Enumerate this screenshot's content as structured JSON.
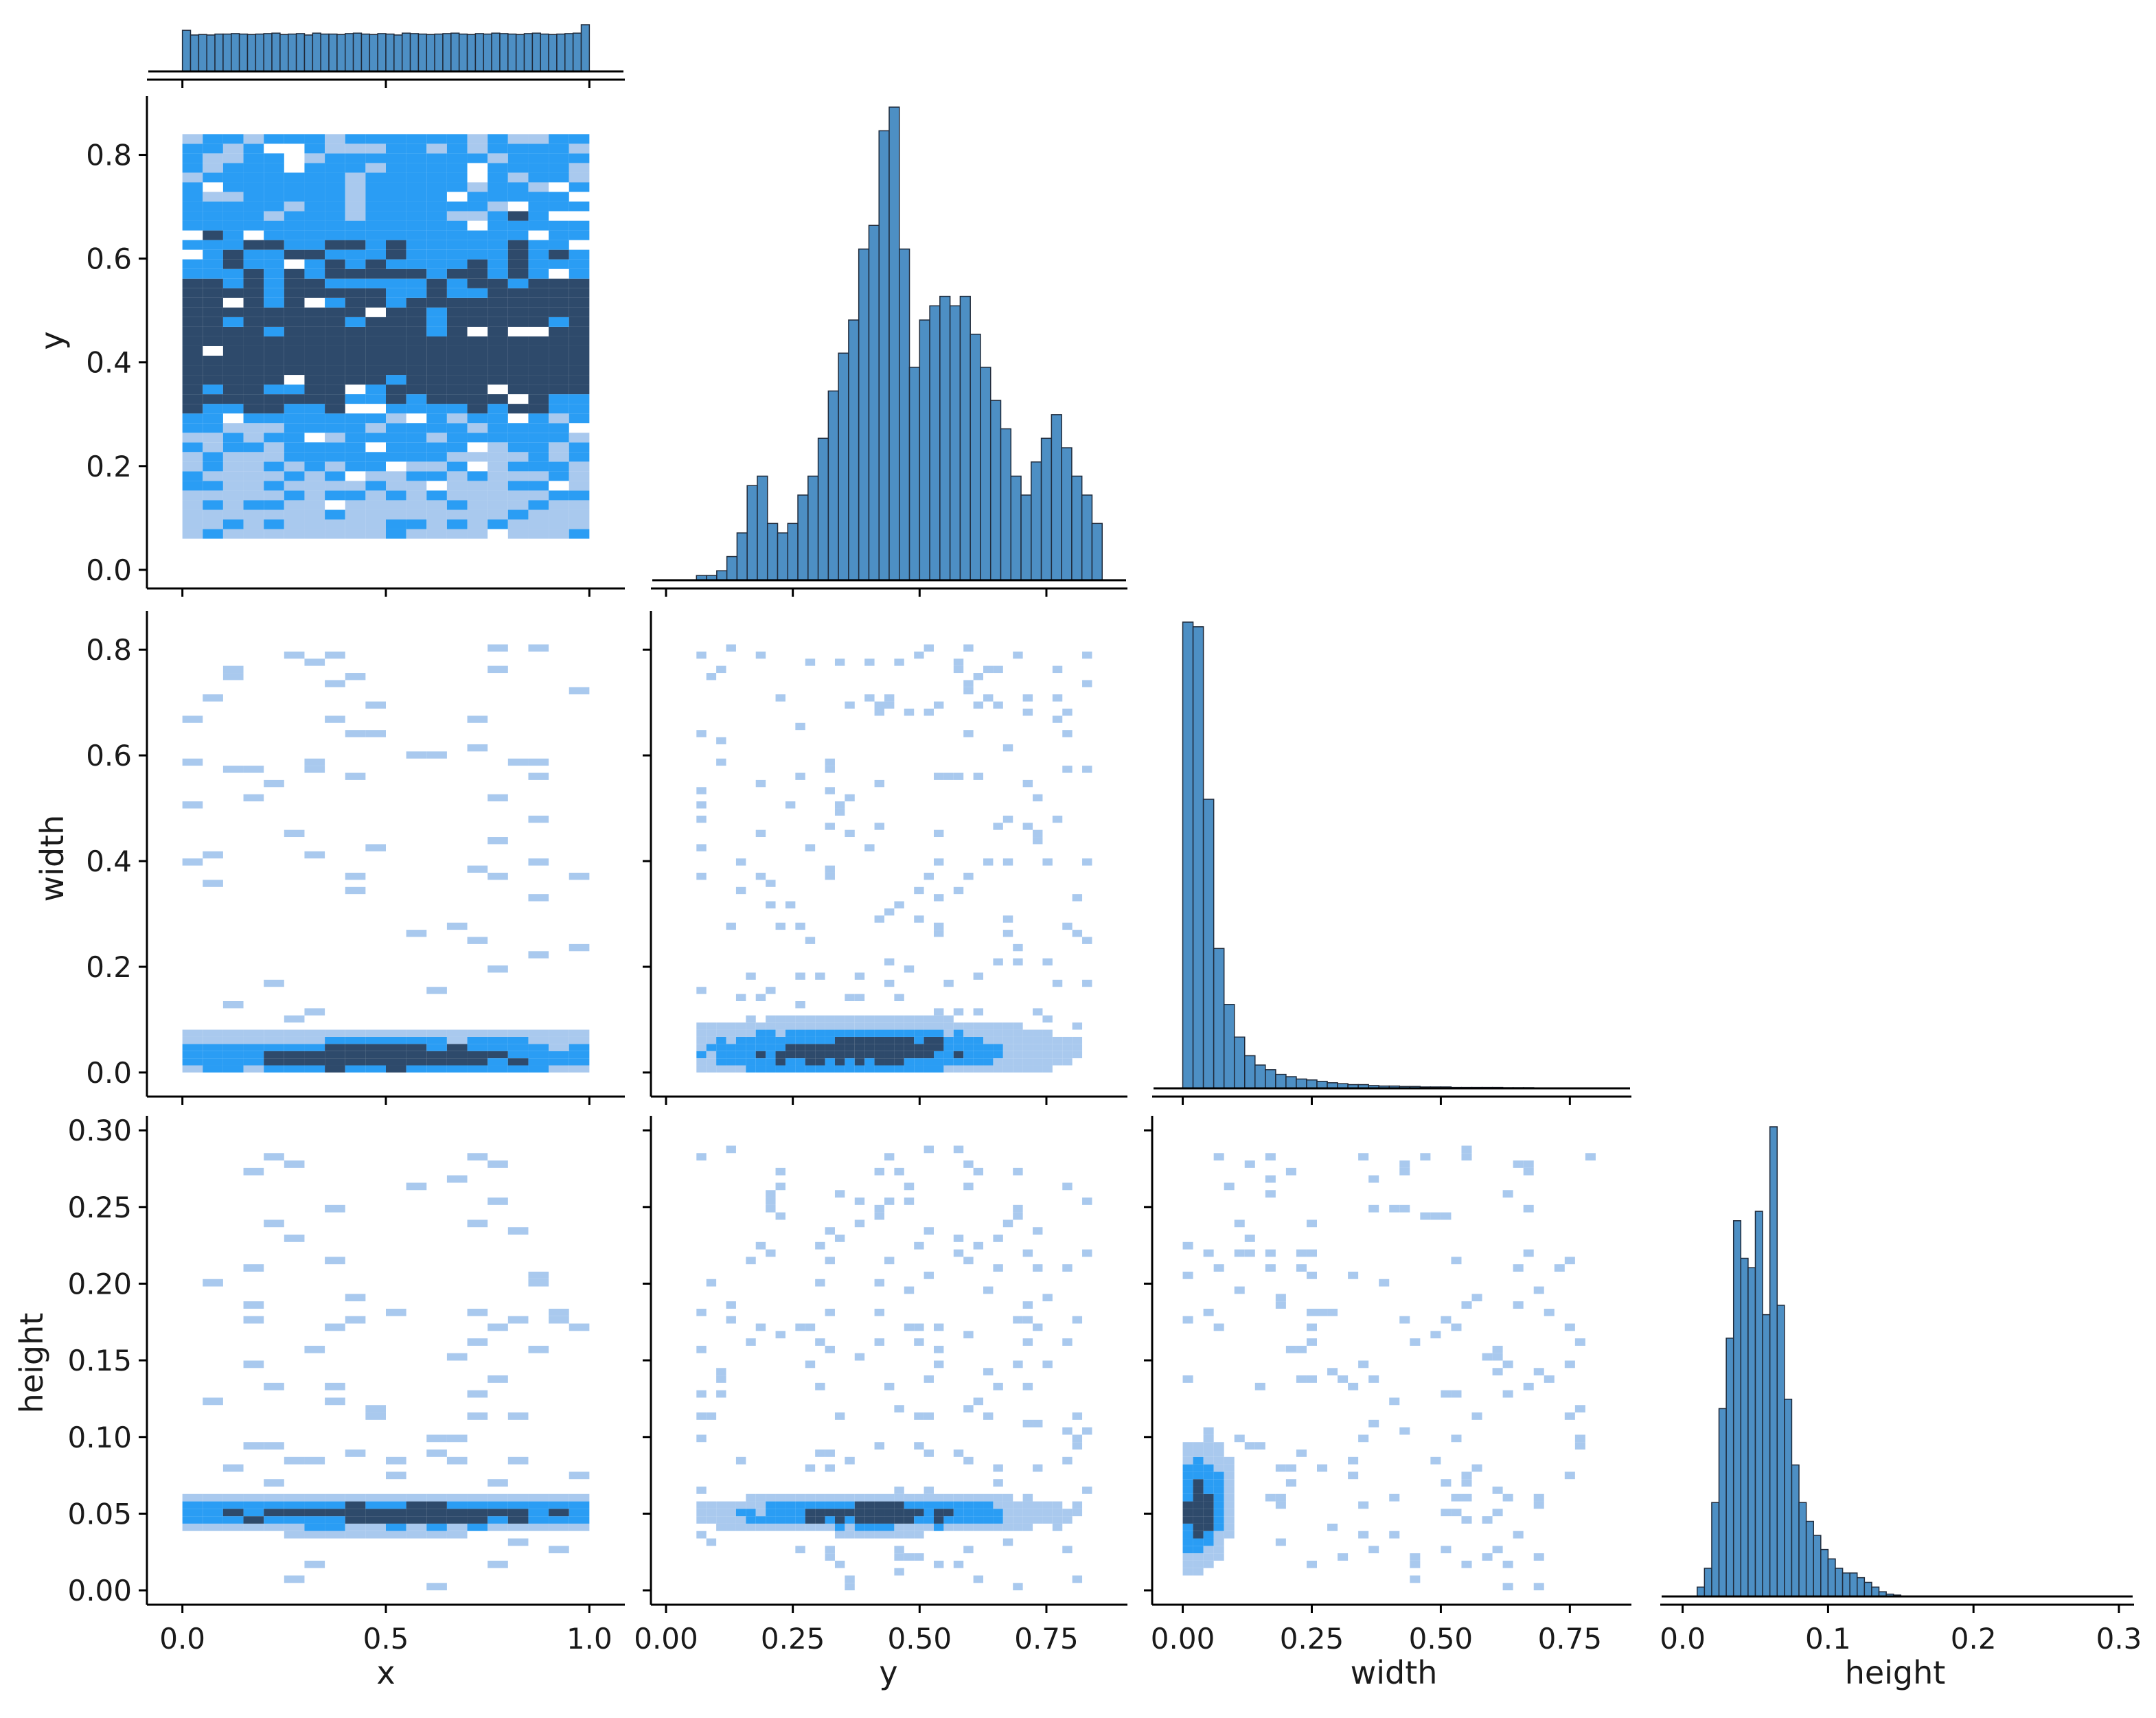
{
  "chart_data": {
    "type": "pairplot",
    "variables": [
      "x",
      "y",
      "width",
      "height"
    ],
    "corner": true,
    "grid": false,
    "colors": {
      "hist_fill": "#4d8fc4",
      "hist_edge": "#1f2a3a",
      "bivar_light": "#a9c9ee",
      "bivar_mid": "#2a9df4",
      "bivar_dark": "#2e4a6b"
    },
    "axes": {
      "x": {
        "label": "x",
        "range": [
          -0.05,
          1.05
        ],
        "ticks": [
          0.0,
          0.5,
          1.0
        ],
        "tick_labels": [
          "0.0",
          "0.5",
          "1.0"
        ]
      },
      "y": {
        "label": "y",
        "range": [
          -0.02,
          0.9
        ],
        "ticks": [
          0.0,
          0.2,
          0.4,
          0.6,
          0.8
        ],
        "tick_labels": [
          "0.0",
          "0.2",
          "0.4",
          "0.6",
          "0.8"
        ],
        "x_ticks": [
          0.0,
          0.25,
          0.5,
          0.75
        ],
        "x_tick_labels": [
          "0.00",
          "0.25",
          "0.50",
          "0.75"
        ],
        "x_range": [
          0.0,
          0.88
        ]
      },
      "width": {
        "label": "width",
        "range": [
          -0.03,
          0.86
        ],
        "ticks": [
          0.0,
          0.2,
          0.4,
          0.6,
          0.8
        ],
        "tick_labels": [
          "0.0",
          "0.2",
          "0.4",
          "0.6",
          "0.8"
        ],
        "x_ticks": [
          0.0,
          0.25,
          0.5,
          0.75
        ],
        "x_tick_labels": [
          "0.00",
          "0.25",
          "0.50",
          "0.75"
        ],
        "x_range": [
          -0.03,
          0.84
        ]
      },
      "height": {
        "label": "height",
        "range": [
          -0.004,
          0.305
        ],
        "ticks": [
          0.0,
          0.05,
          0.1,
          0.15,
          0.2,
          0.25,
          0.3
        ],
        "tick_labels": [
          "0.00",
          "0.05",
          "0.10",
          "0.15",
          "0.20",
          "0.25",
          "0.30"
        ],
        "x_ticks": [
          0.0,
          0.1,
          0.2,
          0.3
        ],
        "x_tick_labels": [
          "0.0",
          "0.1",
          "0.2",
          "0.3"
        ],
        "x_range": [
          -0.005,
          0.3
        ]
      }
    },
    "hist_x": {
      "bin_width": 0.02,
      "range": [
        0.0,
        1.0
      ],
      "counts": [
        0.88,
        0.78,
        0.79,
        0.78,
        0.8,
        0.8,
        0.81,
        0.8,
        0.79,
        0.8,
        0.81,
        0.82,
        0.79,
        0.8,
        0.81,
        0.78,
        0.82,
        0.8,
        0.8,
        0.79,
        0.81,
        0.82,
        0.8,
        0.79,
        0.81,
        0.8,
        0.78,
        0.82,
        0.81,
        0.8,
        0.79,
        0.8,
        0.81,
        0.82,
        0.8,
        0.79,
        0.81,
        0.8,
        0.82,
        0.81,
        0.8,
        0.79,
        0.81,
        0.82,
        0.8,
        0.79,
        0.8,
        0.81,
        0.82,
        1.0
      ]
    },
    "hist_y": {
      "bin_width": 0.02,
      "range": [
        0.06,
        0.84
      ],
      "counts": [
        0.01,
        0.01,
        0.02,
        0.05,
        0.1,
        0.2,
        0.22,
        0.12,
        0.1,
        0.12,
        0.18,
        0.22,
        0.3,
        0.4,
        0.48,
        0.55,
        0.7,
        0.75,
        0.95,
        1.0,
        0.7,
        0.45,
        0.55,
        0.58,
        0.6,
        0.58,
        0.6,
        0.52,
        0.45,
        0.38,
        0.32,
        0.22,
        0.18,
        0.25,
        0.3,
        0.35,
        0.28,
        0.22,
        0.18,
        0.12
      ]
    },
    "hist_width": {
      "bin_width": 0.02,
      "range": [
        0.0,
        0.82
      ],
      "counts": [
        1.0,
        0.99,
        0.62,
        0.3,
        0.18,
        0.11,
        0.07,
        0.05,
        0.04,
        0.03,
        0.025,
        0.02,
        0.018,
        0.015,
        0.012,
        0.01,
        0.008,
        0.008,
        0.006,
        0.005,
        0.005,
        0.004,
        0.004,
        0.003,
        0.003,
        0.003,
        0.002,
        0.002,
        0.002,
        0.002,
        0.002,
        0.0015,
        0.0015,
        0.0015,
        0.001,
        0.001,
        0.001,
        0.001,
        0.001,
        0.001,
        0.001
      ]
    },
    "hist_height": {
      "bin_width": 0.005,
      "range": [
        0.01,
        0.15
      ],
      "counts": [
        0.02,
        0.06,
        0.2,
        0.4,
        0.55,
        0.8,
        0.72,
        0.7,
        0.82,
        0.6,
        1.0,
        0.62,
        0.42,
        0.28,
        0.2,
        0.16,
        0.13,
        0.1,
        0.08,
        0.06,
        0.05,
        0.05,
        0.04,
        0.03,
        0.02,
        0.01,
        0.005,
        0.003
      ]
    },
    "bivariate": [
      {
        "row": "y",
        "col": "x",
        "description_free": true,
        "clusters": [
          {
            "cx": 0.5,
            "cy": 0.5,
            "sx": 0.35,
            "sy": 0.22,
            "weight": 1.0,
            "band_dense": 0.395
          }
        ]
      },
      {
        "row": "width",
        "col": "x",
        "clusters": [
          {
            "cx": 0.5,
            "cy": 0.03,
            "sx": 0.3,
            "sy": 0.04,
            "weight": 1.0
          }
        ]
      },
      {
        "row": "width",
        "col": "y",
        "clusters": [
          {
            "cx": 0.45,
            "cy": 0.04,
            "sx": 0.2,
            "sy": 0.05,
            "weight": 1.0
          }
        ]
      },
      {
        "row": "height",
        "col": "x",
        "clusters": [
          {
            "cx": 0.5,
            "cy": 0.05,
            "sx": 0.35,
            "sy": 0.03,
            "weight": 1.0
          }
        ]
      },
      {
        "row": "height",
        "col": "y",
        "clusters": [
          {
            "cx": 0.5,
            "cy": 0.05,
            "sx": 0.18,
            "sy": 0.03,
            "weight": 1.0
          }
        ]
      },
      {
        "row": "height",
        "col": "width",
        "clusters": [
          {
            "cx": 0.03,
            "cy": 0.05,
            "sx": 0.05,
            "sy": 0.03,
            "weight": 1.0
          }
        ]
      }
    ]
  }
}
